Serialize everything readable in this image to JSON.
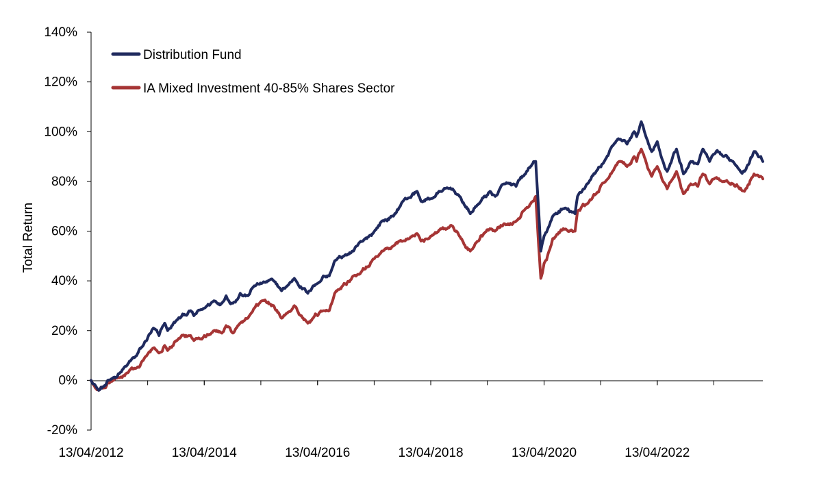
{
  "chart_data": {
    "type": "line",
    "title": "",
    "xlabel": "",
    "ylabel": "Total Return",
    "ylim": [
      -20,
      140
    ],
    "yticks": [
      "-20%",
      "0%",
      "20%",
      "40%",
      "60%",
      "80%",
      "100%",
      "120%",
      "140%"
    ],
    "xlim": [
      "2012-04-13",
      "2024-02-23"
    ],
    "xticks": [
      "13/04/2012",
      "13/04/2014",
      "13/04/2016",
      "13/04/2018",
      "13/04/2020",
      "13/04/2022"
    ],
    "grid": false,
    "legend_position": "top-left",
    "series": [
      {
        "name": "Distribution Fund",
        "color": "#1f2a5e",
        "points": [
          [
            "2012-04-13",
            0
          ],
          [
            "2012-05-10",
            -2
          ],
          [
            "2012-06-01",
            -4
          ],
          [
            "2012-07-15",
            -2
          ],
          [
            "2012-09-01",
            1
          ],
          [
            "2012-10-15",
            3
          ],
          [
            "2012-12-01",
            6
          ],
          [
            "2013-02-01",
            10
          ],
          [
            "2013-03-15",
            14
          ],
          [
            "2013-05-20",
            21
          ],
          [
            "2013-06-25",
            18
          ],
          [
            "2013-08-01",
            23
          ],
          [
            "2013-08-20",
            20
          ],
          [
            "2013-10-15",
            24
          ],
          [
            "2014-01-15",
            28
          ],
          [
            "2014-02-05",
            26
          ],
          [
            "2014-04-13",
            29
          ],
          [
            "2014-06-15",
            32
          ],
          [
            "2014-08-05",
            31
          ],
          [
            "2014-09-01",
            34
          ],
          [
            "2014-10-15",
            31
          ],
          [
            "2014-12-01",
            35
          ],
          [
            "2015-01-20",
            34
          ],
          [
            "2015-03-01",
            38
          ],
          [
            "2015-04-20",
            39
          ],
          [
            "2015-07-05",
            40
          ],
          [
            "2015-08-25",
            36
          ],
          [
            "2015-10-01",
            38
          ],
          [
            "2015-11-15",
            41
          ],
          [
            "2016-02-10",
            35
          ],
          [
            "2016-03-15",
            38
          ],
          [
            "2016-04-13",
            39
          ],
          [
            "2016-05-20",
            42
          ],
          [
            "2016-06-27",
            42
          ],
          [
            "2016-08-01",
            48
          ],
          [
            "2016-10-01",
            50
          ],
          [
            "2016-12-01",
            52
          ],
          [
            "2017-02-01",
            56
          ],
          [
            "2017-04-15",
            60
          ],
          [
            "2017-06-01",
            64
          ],
          [
            "2017-08-15",
            66
          ],
          [
            "2017-10-15",
            72
          ],
          [
            "2018-01-15",
            76
          ],
          [
            "2018-02-09",
            72
          ],
          [
            "2018-04-13",
            73
          ],
          [
            "2018-06-15",
            76
          ],
          [
            "2018-09-01",
            77
          ],
          [
            "2018-10-15",
            74
          ],
          [
            "2018-12-24",
            67
          ],
          [
            "2019-02-15",
            71
          ],
          [
            "2019-04-30",
            76
          ],
          [
            "2019-06-03",
            74
          ],
          [
            "2019-07-30",
            79
          ],
          [
            "2019-10-15",
            78
          ],
          [
            "2019-12-15",
            83
          ],
          [
            "2020-01-17",
            86
          ],
          [
            "2020-02-19",
            88
          ],
          [
            "2020-03-23",
            52
          ],
          [
            "2020-04-13",
            58
          ],
          [
            "2020-05-15",
            62
          ],
          [
            "2020-06-08",
            66
          ],
          [
            "2020-08-15",
            69
          ],
          [
            "2020-10-30",
            67
          ],
          [
            "2020-11-15",
            74
          ],
          [
            "2021-01-15",
            79
          ],
          [
            "2021-03-15",
            84
          ],
          [
            "2021-05-15",
            89
          ],
          [
            "2021-06-15",
            93
          ],
          [
            "2021-08-15",
            97
          ],
          [
            "2021-09-30",
            95
          ],
          [
            "2021-11-15",
            100
          ],
          [
            "2021-12-01",
            98
          ],
          [
            "2021-12-31",
            104
          ],
          [
            "2022-01-25",
            99
          ],
          [
            "2022-03-08",
            92
          ],
          [
            "2022-04-13",
            96
          ],
          [
            "2022-05-20",
            88
          ],
          [
            "2022-06-16",
            84
          ],
          [
            "2022-08-15",
            93
          ],
          [
            "2022-09-29",
            83
          ],
          [
            "2022-11-15",
            88
          ],
          [
            "2022-12-31",
            87
          ],
          [
            "2023-02-01",
            93
          ],
          [
            "2023-03-17",
            88
          ],
          [
            "2023-04-15",
            91
          ],
          [
            "2023-06-15",
            90
          ],
          [
            "2023-08-15",
            88
          ],
          [
            "2023-10-27",
            84
          ],
          [
            "2023-12-28",
            92
          ],
          [
            "2024-02-10",
            90
          ],
          [
            "2024-02-23",
            88
          ]
        ]
      },
      {
        "name": "IA Mixed Investment 40-85% Shares Sector",
        "color": "#a63535",
        "points": [
          [
            "2012-04-13",
            0
          ],
          [
            "2012-05-10",
            -3
          ],
          [
            "2012-06-01",
            -4
          ],
          [
            "2012-07-15",
            -3
          ],
          [
            "2012-09-01",
            0
          ],
          [
            "2012-10-15",
            1
          ],
          [
            "2012-12-01",
            3
          ],
          [
            "2013-02-01",
            5
          ],
          [
            "2013-03-15",
            8
          ],
          [
            "2013-05-20",
            13
          ],
          [
            "2013-06-25",
            11
          ],
          [
            "2013-08-01",
            14
          ],
          [
            "2013-08-20",
            12
          ],
          [
            "2013-10-15",
            16
          ],
          [
            "2014-01-15",
            18
          ],
          [
            "2014-02-05",
            16
          ],
          [
            "2014-04-13",
            18
          ],
          [
            "2014-06-15",
            20
          ],
          [
            "2014-08-05",
            19
          ],
          [
            "2014-09-01",
            22
          ],
          [
            "2014-10-15",
            19
          ],
          [
            "2014-12-01",
            23
          ],
          [
            "2015-01-20",
            25
          ],
          [
            "2015-03-01",
            29
          ],
          [
            "2015-04-20",
            32
          ],
          [
            "2015-07-05",
            30
          ],
          [
            "2015-08-25",
            25
          ],
          [
            "2015-10-01",
            27
          ],
          [
            "2015-11-15",
            30
          ],
          [
            "2016-02-10",
            23
          ],
          [
            "2016-03-15",
            25
          ],
          [
            "2016-04-13",
            26
          ],
          [
            "2016-05-20",
            28
          ],
          [
            "2016-06-27",
            28
          ],
          [
            "2016-08-01",
            35
          ],
          [
            "2016-10-01",
            39
          ],
          [
            "2016-12-01",
            42
          ],
          [
            "2017-02-01",
            45
          ],
          [
            "2017-04-15",
            49
          ],
          [
            "2017-06-01",
            52
          ],
          [
            "2017-08-15",
            54
          ],
          [
            "2017-10-15",
            56
          ],
          [
            "2018-01-15",
            59
          ],
          [
            "2018-02-09",
            56
          ],
          [
            "2018-04-13",
            58
          ],
          [
            "2018-06-15",
            61
          ],
          [
            "2018-09-01",
            62
          ],
          [
            "2018-10-15",
            58
          ],
          [
            "2018-12-24",
            52
          ],
          [
            "2019-02-15",
            56
          ],
          [
            "2019-04-30",
            61
          ],
          [
            "2019-06-03",
            60
          ],
          [
            "2019-07-30",
            63
          ],
          [
            "2019-10-15",
            64
          ],
          [
            "2019-12-15",
            69
          ],
          [
            "2020-01-17",
            71
          ],
          [
            "2020-02-19",
            74
          ],
          [
            "2020-03-23",
            41
          ],
          [
            "2020-04-13",
            47
          ],
          [
            "2020-05-15",
            52
          ],
          [
            "2020-06-08",
            57
          ],
          [
            "2020-08-15",
            61
          ],
          [
            "2020-10-30",
            60
          ],
          [
            "2020-11-15",
            68
          ],
          [
            "2021-01-15",
            71
          ],
          [
            "2021-03-15",
            75
          ],
          [
            "2021-05-15",
            80
          ],
          [
            "2021-06-15",
            83
          ],
          [
            "2021-08-15",
            88
          ],
          [
            "2021-09-30",
            86
          ],
          [
            "2021-11-15",
            90
          ],
          [
            "2021-12-01",
            88
          ],
          [
            "2021-12-31",
            93
          ],
          [
            "2022-01-25",
            89
          ],
          [
            "2022-03-08",
            82
          ],
          [
            "2022-04-13",
            86
          ],
          [
            "2022-05-20",
            80
          ],
          [
            "2022-06-16",
            77
          ],
          [
            "2022-08-15",
            84
          ],
          [
            "2022-09-29",
            75
          ],
          [
            "2022-11-15",
            79
          ],
          [
            "2022-12-31",
            78
          ],
          [
            "2023-02-01",
            83
          ],
          [
            "2023-03-17",
            79
          ],
          [
            "2023-04-15",
            81
          ],
          [
            "2023-06-15",
            80
          ],
          [
            "2023-08-15",
            79
          ],
          [
            "2023-10-27",
            76
          ],
          [
            "2023-12-28",
            83
          ],
          [
            "2024-02-10",
            82
          ],
          [
            "2024-02-23",
            81
          ]
        ]
      }
    ]
  }
}
